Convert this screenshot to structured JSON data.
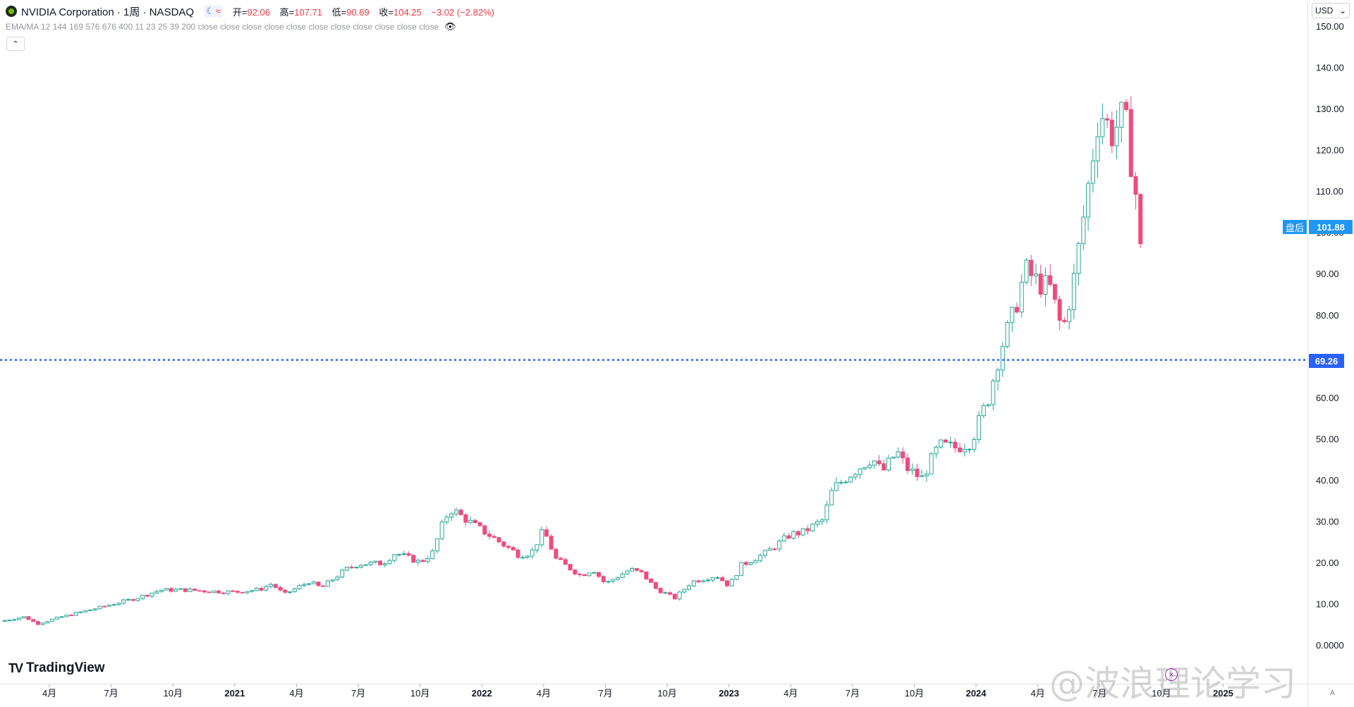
{
  "header": {
    "title": "NVIDIA Corporation · 1周 · NASDAQ",
    "toggle_moon": "☾",
    "toggle_wave": "≈",
    "ohlc": [
      {
        "label": "开=",
        "value": "92.06"
      },
      {
        "label": "高=",
        "value": "107.71"
      },
      {
        "label": "低=",
        "value": "90.69"
      },
      {
        "label": "收=",
        "value": "104.25"
      }
    ],
    "change": "−3.02 (−2.82%)"
  },
  "indicators": {
    "text": "EMA/MA 12 144 169 576 676 400 11 23 25 39 200 close close close close close close close close close close close",
    "hide_icon": "eye-off-icon"
  },
  "currency_button": {
    "label": "USD",
    "caret": "⌄"
  },
  "collapse_button": "⌃",
  "brand": {
    "name": "TradingView",
    "icon": "TV"
  },
  "watermark": "@波浪理论学习",
  "price_tags": {
    "after_hours_label": "盘后",
    "after_hours_value": "101.88",
    "line_value": "69.26"
  },
  "colors": {
    "up": "#26a69a",
    "up_body": "#ffffff",
    "down": "#ef4b7d",
    "line": "#2962ff",
    "after_hours_bg": "#2196f3",
    "line_tag_bg": "#2962ff"
  },
  "chart_data": {
    "type": "candlestick",
    "symbol": "NVIDIA Corporation",
    "interval": "1周",
    "exchange": "NASDAQ",
    "currency": "USD",
    "y_ticks": [
      "0.0000",
      "10.00",
      "20.00",
      "30.00",
      "40.00",
      "50.00",
      "60.00",
      "80.00",
      "90.00",
      "100.00",
      "110.00",
      "120.00",
      "130.00",
      "140.00",
      "150.00"
    ],
    "y_range": [
      0,
      153
    ],
    "x_ticks": [
      {
        "label": "4月",
        "date": 2020.25
      },
      {
        "label": "7月",
        "date": 2020.5
      },
      {
        "label": "10月",
        "date": 2020.75
      },
      {
        "label": "2021",
        "date": 2021.0
      },
      {
        "label": "4月",
        "date": 2021.25
      },
      {
        "label": "7月",
        "date": 2021.5
      },
      {
        "label": "10月",
        "date": 2021.75
      },
      {
        "label": "2022",
        "date": 2022.0
      },
      {
        "label": "4月",
        "date": 2022.25
      },
      {
        "label": "7月",
        "date": 2022.5
      },
      {
        "label": "10月",
        "date": 2022.75
      },
      {
        "label": "2023",
        "date": 2023.0
      },
      {
        "label": "4月",
        "date": 2023.25
      },
      {
        "label": "7月",
        "date": 2023.5
      },
      {
        "label": "10月",
        "date": 2023.75
      },
      {
        "label": "2024",
        "date": 2024.0
      },
      {
        "label": "4月",
        "date": 2024.25
      },
      {
        "label": "7月",
        "date": 2024.5
      },
      {
        "label": "10月",
        "date": 2024.75
      },
      {
        "label": "2025",
        "date": 2025.0
      }
    ],
    "x_range": [
      2020.05,
      2025.13
    ],
    "horizontal_line": 69.26,
    "after_hours_price": 101.88,
    "anchors": [
      [
        2020.05,
        5.9
      ],
      [
        2020.15,
        7.0
      ],
      [
        2020.2,
        5.3
      ],
      [
        2020.3,
        7.0
      ],
      [
        2020.45,
        9.2
      ],
      [
        2020.6,
        11.5
      ],
      [
        2020.7,
        13.5
      ],
      [
        2020.8,
        13.5
      ],
      [
        2020.9,
        13.2
      ],
      [
        2021.0,
        13.0
      ],
      [
        2021.1,
        13.6
      ],
      [
        2021.15,
        15.0
      ],
      [
        2021.2,
        12.4
      ],
      [
        2021.3,
        15.5
      ],
      [
        2021.35,
        14.0
      ],
      [
        2021.45,
        18.5
      ],
      [
        2021.5,
        19.8
      ],
      [
        2021.6,
        20.0
      ],
      [
        2021.65,
        22.5
      ],
      [
        2021.75,
        20.2
      ],
      [
        2021.8,
        22.5
      ],
      [
        2021.85,
        31.0
      ],
      [
        2021.88,
        33.0
      ],
      [
        2021.95,
        30.0
      ],
      [
        2022.05,
        26.0
      ],
      [
        2022.1,
        24.0
      ],
      [
        2022.15,
        22.0
      ],
      [
        2022.2,
        22.5
      ],
      [
        2022.25,
        28.0
      ],
      [
        2022.3,
        21.0
      ],
      [
        2022.4,
        17.0
      ],
      [
        2022.45,
        18.5
      ],
      [
        2022.5,
        15.0
      ],
      [
        2022.6,
        18.5
      ],
      [
        2022.65,
        17.5
      ],
      [
        2022.7,
        14.0
      ],
      [
        2022.78,
        11.5
      ],
      [
        2022.85,
        15.5
      ],
      [
        2022.95,
        17.0
      ],
      [
        2023.0,
        14.5
      ],
      [
        2023.05,
        19.5
      ],
      [
        2023.15,
        22.5
      ],
      [
        2023.25,
        27.0
      ],
      [
        2023.3,
        27.5
      ],
      [
        2023.38,
        30.5
      ],
      [
        2023.42,
        38.0
      ],
      [
        2023.5,
        42.0
      ],
      [
        2023.58,
        45.5
      ],
      [
        2023.62,
        42.0
      ],
      [
        2023.68,
        47.0
      ],
      [
        2023.72,
        43.0
      ],
      [
        2023.78,
        40.5
      ],
      [
        2023.85,
        48.5
      ],
      [
        2023.92,
        48.0
      ],
      [
        2023.98,
        49.5
      ],
      [
        2024.05,
        60.0
      ],
      [
        2024.1,
        72.0
      ],
      [
        2024.15,
        80.0
      ],
      [
        2024.2,
        91.0
      ],
      [
        2024.25,
        88.0
      ],
      [
        2024.3,
        86.5
      ],
      [
        2024.35,
        76.0
      ],
      [
        2024.4,
        90.0
      ],
      [
        2024.45,
        110.0
      ],
      [
        2024.5,
        130.0
      ],
      [
        2024.55,
        124.0
      ],
      [
        2024.6,
        129.0
      ],
      [
        2024.65,
        108.0
      ],
      [
        2024.67,
        92.0
      ]
    ]
  }
}
